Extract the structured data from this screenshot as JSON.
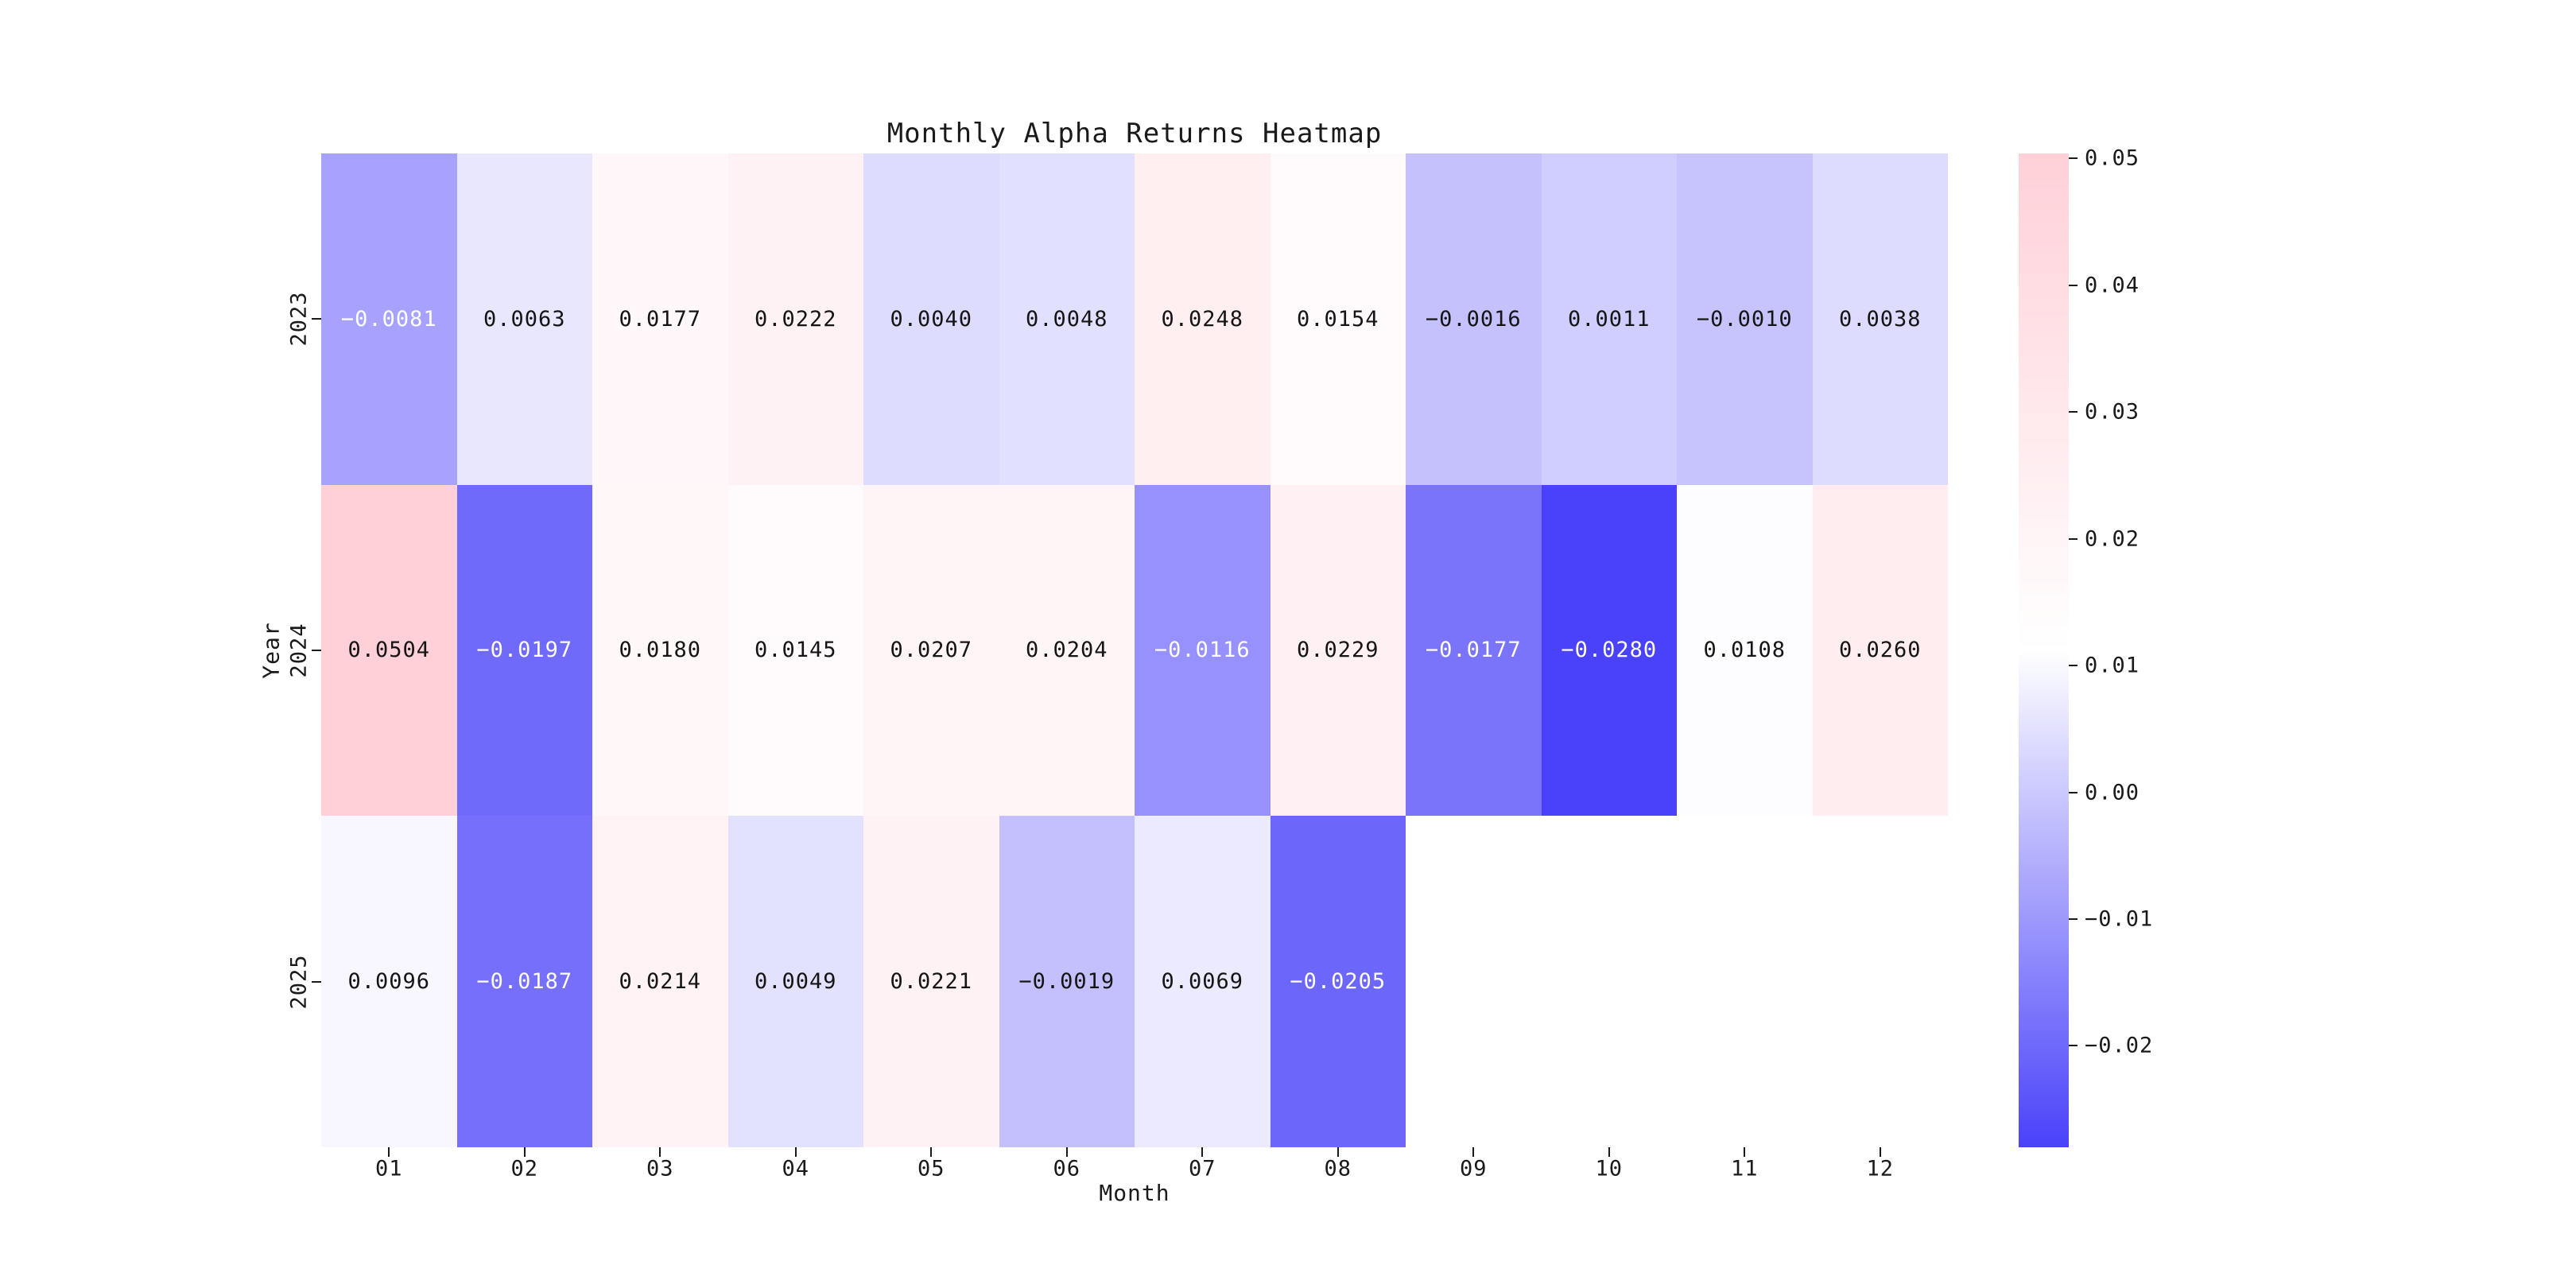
{
  "chart_data": {
    "type": "heatmap",
    "title": "Monthly Alpha Returns Heatmap",
    "xlabel": "Month",
    "ylabel": "Year",
    "x_categories": [
      "01",
      "02",
      "03",
      "04",
      "05",
      "06",
      "07",
      "08",
      "09",
      "10",
      "11",
      "12"
    ],
    "y_categories": [
      "2023",
      "2024",
      "2025"
    ],
    "values": [
      [
        -0.0081,
        0.0063,
        0.0177,
        0.0222,
        0.004,
        0.0048,
        0.0248,
        0.0154,
        -0.0016,
        0.0011,
        -0.001,
        0.0038
      ],
      [
        0.0504,
        -0.0197,
        0.018,
        0.0145,
        0.0207,
        0.0204,
        -0.0116,
        0.0229,
        -0.0177,
        -0.028,
        0.0108,
        0.026
      ],
      [
        0.0096,
        -0.0187,
        0.0214,
        0.0049,
        0.0221,
        -0.0019,
        0.0069,
        -0.0205,
        null,
        null,
        null,
        null
      ]
    ],
    "value_format_decimals": 4,
    "vmin": -0.028,
    "vmax": 0.0504,
    "grid": false,
    "legend_position": "right-colorbar",
    "colorbar": {
      "tick_values": [
        0.05,
        0.04,
        0.03,
        0.02,
        0.01,
        0.0,
        -0.01,
        -0.02
      ],
      "tick_labels": [
        "0.05",
        "0.04",
        "0.03",
        "0.02",
        "0.01",
        "0.00",
        "−0.01",
        "−0.02"
      ]
    },
    "colors": {
      "low": "#4a42fa",
      "mid": "#ffffff",
      "high": "#ffd0d8",
      "annot_dark": "#151515",
      "annot_light": "#ffffff",
      "axis_text": "#1a1a1a",
      "background": "#ffffff"
    }
  }
}
